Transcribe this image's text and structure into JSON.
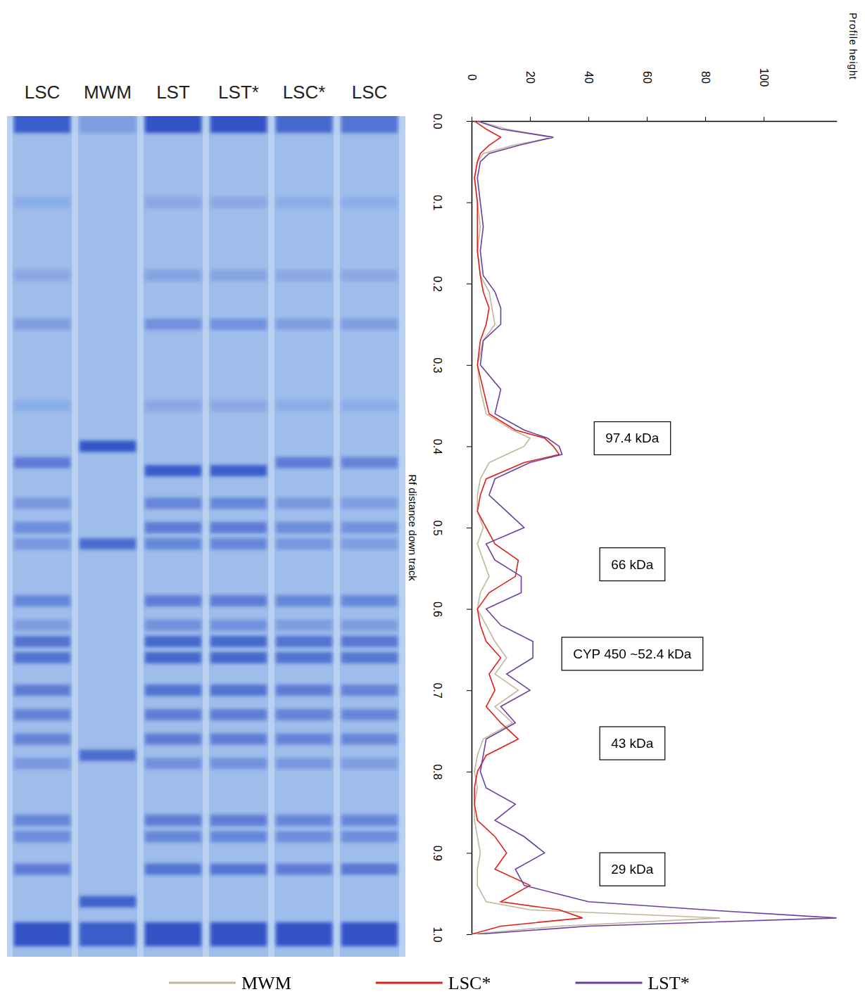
{
  "gel": {
    "lanes": [
      {
        "label": "LSC",
        "bands": [
          0.0,
          0.1,
          0.19,
          0.25,
          0.35,
          0.42,
          0.47,
          0.5,
          0.52,
          0.59,
          0.62,
          0.64,
          0.66,
          0.7,
          0.73,
          0.76,
          0.79,
          0.86,
          0.88,
          0.92,
          1.0
        ],
        "intensity": [
          0.9,
          0.15,
          0.2,
          0.3,
          0.15,
          0.6,
          0.35,
          0.45,
          0.35,
          0.5,
          0.3,
          0.7,
          0.7,
          0.6,
          0.55,
          0.55,
          0.35,
          0.5,
          0.45,
          0.6,
          1.0
        ]
      },
      {
        "label": "MWM",
        "bands": [
          0.0,
          0.4,
          0.52,
          0.78,
          0.96,
          1.0
        ],
        "intensity": [
          0.3,
          0.95,
          0.75,
          0.75,
          0.85,
          0.9
        ]
      },
      {
        "label": "LST",
        "bands": [
          0.0,
          0.1,
          0.19,
          0.25,
          0.35,
          0.43,
          0.47,
          0.5,
          0.52,
          0.59,
          0.62,
          0.64,
          0.66,
          0.7,
          0.73,
          0.76,
          0.79,
          0.86,
          0.88,
          0.92,
          1.0
        ],
        "intensity": [
          1.0,
          0.2,
          0.25,
          0.4,
          0.2,
          0.9,
          0.5,
          0.6,
          0.5,
          0.6,
          0.4,
          0.8,
          0.8,
          0.7,
          0.6,
          0.6,
          0.4,
          0.6,
          0.5,
          0.7,
          1.0
        ]
      },
      {
        "label": "LST*",
        "bands": [
          0.0,
          0.1,
          0.19,
          0.25,
          0.35,
          0.43,
          0.47,
          0.5,
          0.52,
          0.59,
          0.62,
          0.64,
          0.66,
          0.7,
          0.73,
          0.76,
          0.79,
          0.86,
          0.88,
          0.92,
          1.0
        ],
        "intensity": [
          1.0,
          0.2,
          0.25,
          0.4,
          0.2,
          0.9,
          0.5,
          0.6,
          0.5,
          0.6,
          0.4,
          0.8,
          0.8,
          0.7,
          0.6,
          0.6,
          0.4,
          0.6,
          0.5,
          0.7,
          1.0
        ]
      },
      {
        "label": "LSC*",
        "bands": [
          0.0,
          0.1,
          0.19,
          0.25,
          0.35,
          0.42,
          0.47,
          0.5,
          0.52,
          0.59,
          0.62,
          0.64,
          0.66,
          0.7,
          0.73,
          0.76,
          0.79,
          0.86,
          0.88,
          0.92,
          1.0
        ],
        "intensity": [
          0.8,
          0.15,
          0.2,
          0.3,
          0.15,
          0.6,
          0.35,
          0.45,
          0.35,
          0.5,
          0.3,
          0.7,
          0.7,
          0.6,
          0.55,
          0.55,
          0.35,
          0.5,
          0.45,
          0.6,
          1.0
        ]
      },
      {
        "label": "LSC",
        "bands": [
          0.0,
          0.1,
          0.19,
          0.25,
          0.35,
          0.42,
          0.47,
          0.5,
          0.52,
          0.59,
          0.62,
          0.64,
          0.66,
          0.7,
          0.73,
          0.76,
          0.79,
          0.86,
          0.88,
          0.92,
          1.0
        ],
        "intensity": [
          0.7,
          0.15,
          0.2,
          0.3,
          0.15,
          0.55,
          0.3,
          0.4,
          0.3,
          0.5,
          0.3,
          0.65,
          0.65,
          0.55,
          0.5,
          0.5,
          0.3,
          0.5,
          0.45,
          0.65,
          1.0
        ]
      }
    ]
  },
  "chart_data": {
    "type": "line",
    "x_label": "Rf distance down track",
    "y_label": "Profile height",
    "x": [
      0,
      0.01,
      0.02,
      0.03,
      0.04,
      0.05,
      0.07,
      0.1,
      0.13,
      0.16,
      0.19,
      0.21,
      0.23,
      0.25,
      0.27,
      0.3,
      0.33,
      0.36,
      0.38,
      0.39,
      0.4,
      0.41,
      0.42,
      0.44,
      0.46,
      0.48,
      0.5,
      0.52,
      0.54,
      0.56,
      0.58,
      0.6,
      0.62,
      0.64,
      0.66,
      0.68,
      0.7,
      0.72,
      0.74,
      0.76,
      0.78,
      0.8,
      0.82,
      0.84,
      0.86,
      0.88,
      0.9,
      0.92,
      0.94,
      0.96,
      0.97,
      0.98,
      0.99,
      1.0
    ],
    "series": [
      {
        "name": "MWM",
        "color": "#c2b59b",
        "values": [
          2,
          12,
          28,
          14,
          4,
          2,
          1,
          2,
          3,
          2,
          3,
          6,
          7,
          8,
          4,
          2,
          3,
          5,
          14,
          20,
          18,
          12,
          6,
          3,
          2,
          2,
          4,
          2,
          4,
          6,
          3,
          2,
          5,
          8,
          12,
          8,
          16,
          8,
          14,
          4,
          2,
          1,
          2,
          1,
          1,
          2,
          3,
          2,
          2,
          5,
          20,
          85,
          30,
          0
        ]
      },
      {
        "name": "LSC*",
        "color": "#e0201b",
        "values": [
          1,
          5,
          10,
          6,
          3,
          2,
          1,
          2,
          2,
          2,
          3,
          4,
          6,
          5,
          3,
          2,
          4,
          6,
          15,
          25,
          28,
          30,
          18,
          5,
          3,
          2,
          5,
          8,
          16,
          15,
          6,
          2,
          3,
          5,
          10,
          6,
          8,
          5,
          10,
          16,
          5,
          2,
          1,
          1,
          2,
          8,
          12,
          8,
          20,
          10,
          30,
          38,
          10,
          0
        ]
      },
      {
        "name": "LST*",
        "color": "#6a3fa0",
        "values": [
          2,
          10,
          28,
          16,
          6,
          3,
          2,
          3,
          4,
          3,
          4,
          8,
          10,
          10,
          4,
          3,
          10,
          8,
          18,
          26,
          30,
          31,
          20,
          8,
          6,
          12,
          18,
          5,
          8,
          17,
          17,
          5,
          10,
          21,
          21,
          12,
          20,
          10,
          15,
          5,
          4,
          3,
          5,
          15,
          8,
          18,
          25,
          15,
          18,
          40,
          80,
          125,
          40,
          2
        ]
      }
    ],
    "xlim": [
      0,
      1
    ],
    "xticks": [
      {
        "value": 0,
        "label": "0.0"
      },
      0.1,
      0.2,
      0.3,
      0.4,
      0.5,
      0.6,
      0.7,
      0.8,
      0.9,
      {
        "value": 1,
        "label": "1.0"
      }
    ],
    "ylim": [
      0,
      125
    ],
    "yticks": [
      0,
      20,
      40,
      60,
      80,
      100
    ],
    "legend": "bottom",
    "annotations": [
      {
        "text": "97.4 kDa",
        "x": 0.39,
        "y": 55
      },
      {
        "text": "66 kDa",
        "x": 0.545,
        "y": 55
      },
      {
        "text": "CYP 450 ~52.4 kDa",
        "x": 0.655,
        "y": 55
      },
      {
        "text": "43 kDa",
        "x": 0.765,
        "y": 55
      },
      {
        "text": "29 kDa",
        "x": 0.92,
        "y": 55
      }
    ]
  }
}
